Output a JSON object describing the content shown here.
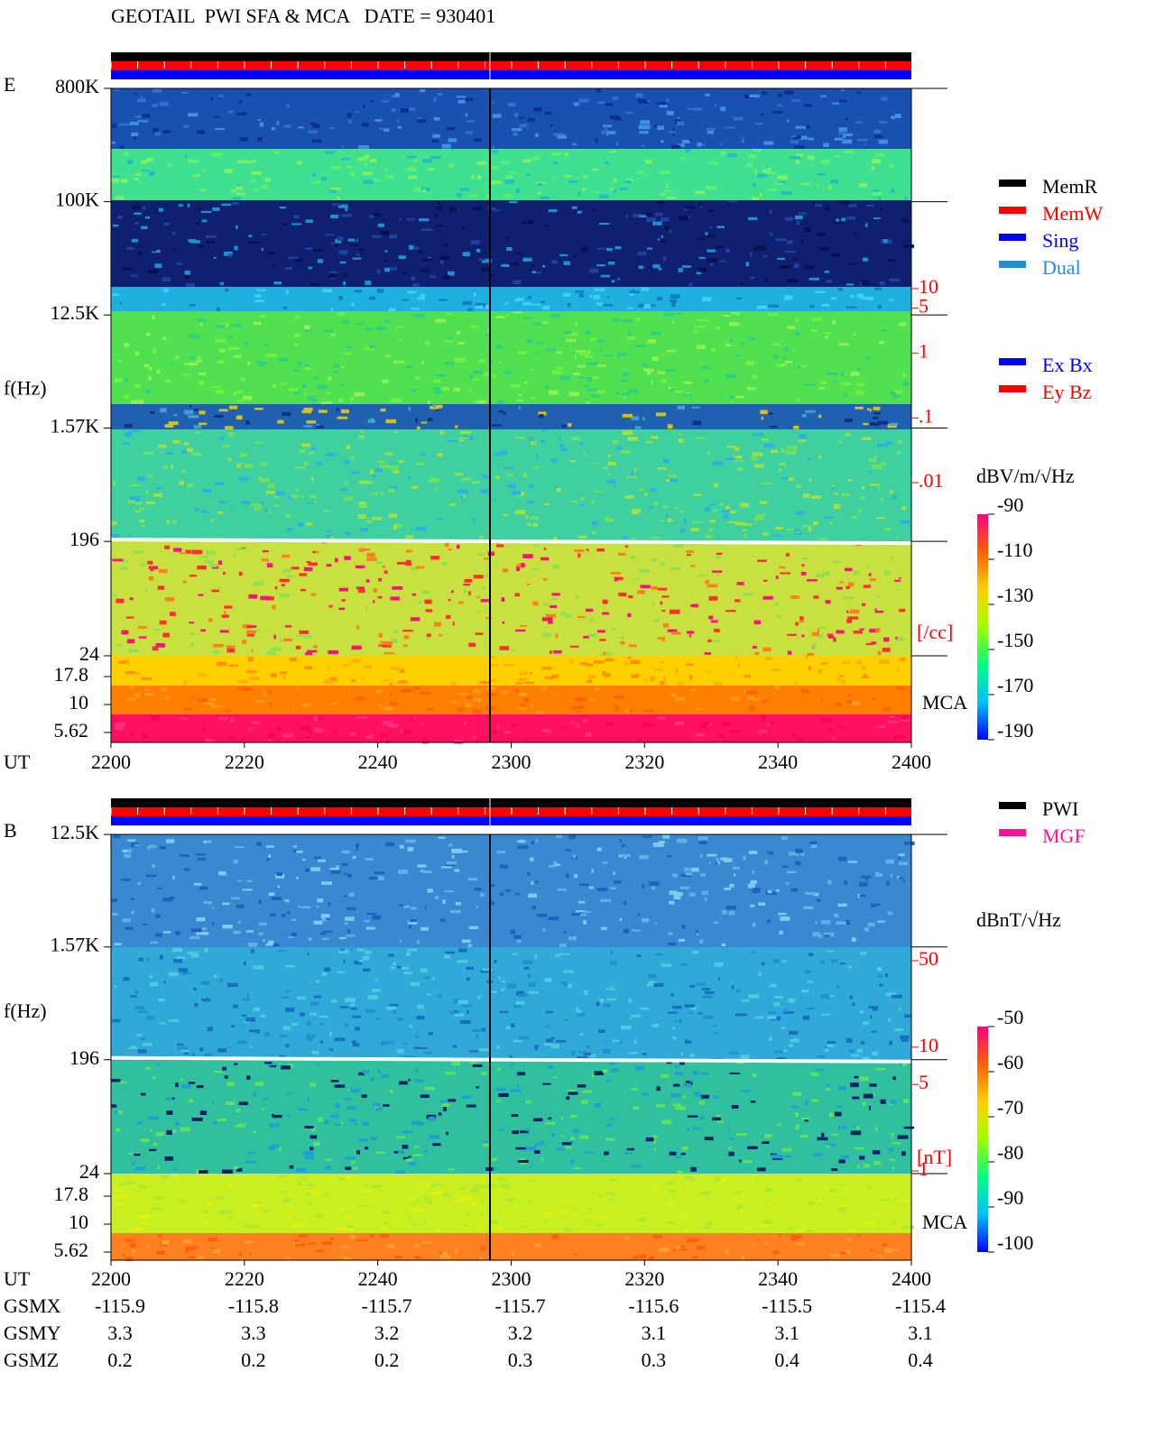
{
  "title": "GEOTAIL  PWI SFA & MCA   DATE = 930401",
  "chart_data": [
    {
      "type": "spectrogram",
      "component": "E",
      "ylabel": "f(Hz)",
      "xlabel": "UT",
      "x_labels": [
        "2200",
        "2220",
        "2240",
        "2300",
        "2320",
        "2340",
        "2400"
      ],
      "log_y": true,
      "ylim": [
        24,
        800000
      ],
      "yticks": [
        {
          "value": 800000,
          "label": "800K"
        },
        {
          "value": 100000,
          "label": "100K"
        },
        {
          "value": 12500,
          "label": "12.5K"
        },
        {
          "value": 1570,
          "label": "1.57K"
        },
        196,
        24
      ],
      "mca_label": "MCA",
      "mca_ylim": [
        5.62,
        17.8
      ],
      "mca_yticks": [
        17.8,
        10,
        5.62
      ],
      "y2lim": [
        0.01,
        10
      ],
      "y2ticks": [
        10,
        5,
        1,
        {
          "value": 0.1,
          "label": ".1"
        },
        {
          "value": 0.01,
          "label": ".01"
        }
      ],
      "y2label": "[/cc]",
      "legend": [
        {
          "name": "MemR",
          "color": "#000000"
        },
        {
          "name": "MemW",
          "color": "#ff0000"
        },
        {
          "name": "Sing",
          "color": "#0000ff"
        },
        {
          "name": "Dual",
          "color": "#1e90d0"
        }
      ],
      "legend2": [
        {
          "name": "Ex Bx",
          "color": "#0000ff"
        },
        {
          "name": "Ey Bz",
          "color": "#ff0000"
        }
      ],
      "colorbar": {
        "label": "dBV/m/√Hz",
        "lim": [
          -190,
          -90
        ],
        "ticks": [
          -90,
          -110,
          -130,
          -150,
          -170,
          -190
        ]
      }
    },
    {
      "type": "spectrogram",
      "component": "B",
      "ylabel": "f(Hz)",
      "xlabel": "UT",
      "x_labels": [
        "2200",
        "2220",
        "2240",
        "2300",
        "2320",
        "2340",
        "2400"
      ],
      "log_y": true,
      "ylim": [
        24,
        12500
      ],
      "yticks": [
        {
          "value": 12500,
          "label": "12.5K"
        },
        {
          "value": 1570,
          "label": "1.57K"
        },
        196,
        24
      ],
      "mca_label": "MCA",
      "mca_ylim": [
        5.62,
        17.8
      ],
      "mca_yticks": [
        17.8,
        10,
        5.62
      ],
      "y2lim": [
        1,
        50
      ],
      "y2ticks": [
        50,
        10,
        5,
        1
      ],
      "y2label": "[nT]",
      "legend": [
        {
          "name": "PWI",
          "color": "#000000"
        },
        {
          "name": "MGF",
          "color": "#ff1493"
        }
      ],
      "colorbar": {
        "label": "dBnT/√Hz",
        "lim": [
          -100,
          -50
        ],
        "ticks": [
          -50,
          -60,
          -70,
          -80,
          -90,
          -100
        ]
      }
    }
  ],
  "orbit": [
    {
      "name": "GSMX",
      "values": [
        -115.9,
        -115.8,
        -115.7,
        -115.7,
        -115.6,
        -115.5,
        -115.4
      ]
    },
    {
      "name": "GSMY",
      "values": [
        3.3,
        3.3,
        3.2,
        3.2,
        3.1,
        3.1,
        3.1
      ]
    },
    {
      "name": "GSMZ",
      "values": [
        0.2,
        0.2,
        0.2,
        0.3,
        0.3,
        0.4,
        0.4
      ]
    }
  ]
}
